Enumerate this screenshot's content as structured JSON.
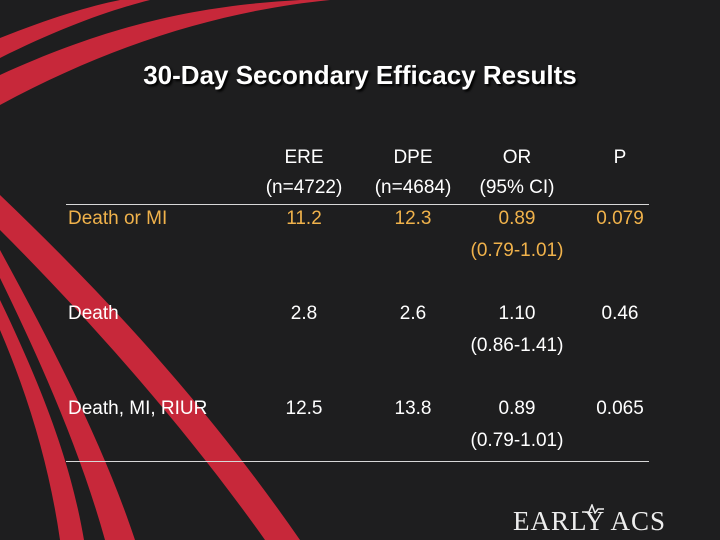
{
  "title": "30-Day Secondary Efficacy Results",
  "colors": {
    "background": "#1e1e1f",
    "accent_red": "#c7283a",
    "highlight": "#f0b24b",
    "text": "#ffffff"
  },
  "columns": {
    "ere": {
      "name": "ERE",
      "n": "(n=4722)"
    },
    "dpe": {
      "name": "DPE",
      "n": "(n=4684)"
    },
    "or": {
      "name": "OR",
      "n": "(95% CI)"
    },
    "p": {
      "name": "P"
    }
  },
  "rows": [
    {
      "label": "Death or MI",
      "ere": "11.2",
      "dpe": "12.3",
      "or": "0.89",
      "ci": "(0.79-1.01)",
      "p": "0.079"
    },
    {
      "label": "Death",
      "ere": "2.8",
      "dpe": "2.6",
      "or": "1.10",
      "ci": "(0.86-1.41)",
      "p": "0.46"
    },
    {
      "label": "Death, MI, RIUR",
      "ere": "12.5",
      "dpe": "13.8",
      "or": "0.89",
      "ci": "(0.79-1.01)",
      "p": "0.065"
    }
  ],
  "logo": {
    "text": "EARLY ACS"
  }
}
